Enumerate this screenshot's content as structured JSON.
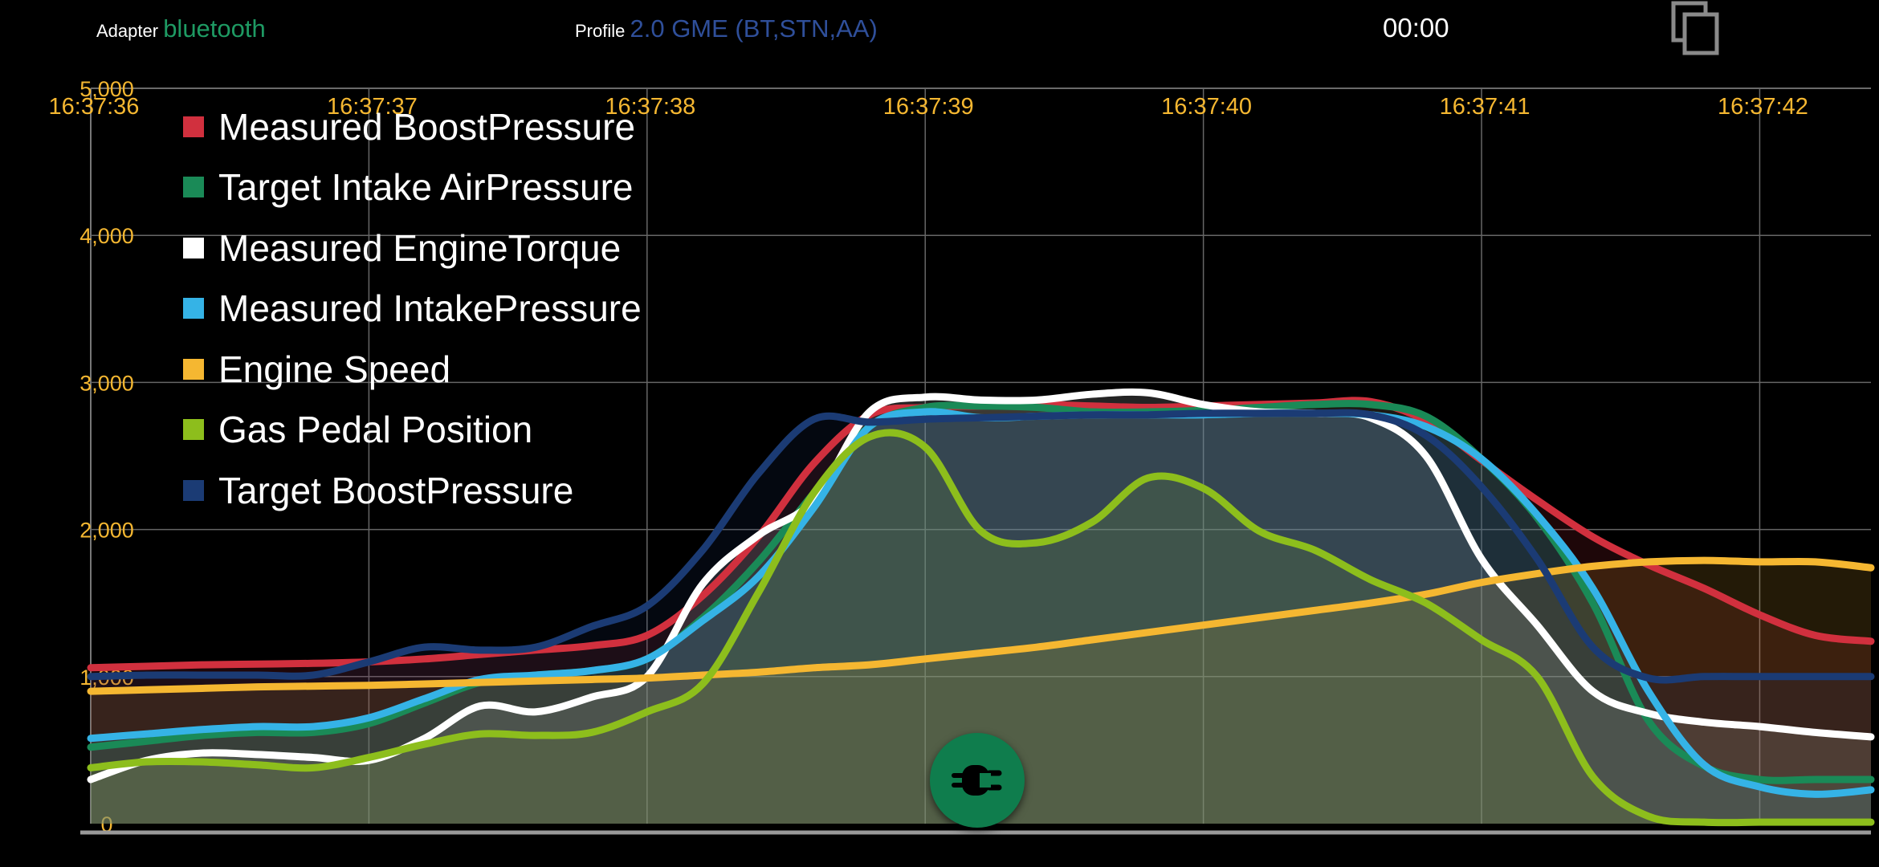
{
  "header": {
    "adapter_label": "Adapter",
    "adapter_value": "bluetooth",
    "profile_label": "Profile",
    "profile_value": "2.0 GME (BT,STN,AA)",
    "timer": "00:00"
  },
  "icons": {
    "copy": "copy-icon",
    "fab": "connector-plug-icon"
  },
  "colors": {
    "background": "#000000",
    "tick_label": "#f5b731",
    "adapter": "#1e9a63",
    "profile": "#2f4f9a",
    "fab": "#0f7d4d"
  },
  "chart_data": {
    "type": "area",
    "x_axis": {
      "type": "time",
      "ticks": [
        "16:37:36",
        "16:37:37",
        "16:37:38",
        "16:37:39",
        "16:37:40",
        "16:37:41",
        "16:37:42"
      ],
      "range": [
        0,
        6.4
      ]
    },
    "y_axis": {
      "range": [
        0,
        5000
      ],
      "ticks": [
        "0",
        "1,000",
        "2,000",
        "3,000",
        "4,000",
        "5,000"
      ]
    },
    "grid": true,
    "legend_position": "top-left",
    "x": [
      0,
      0.2,
      0.4,
      0.6,
      0.8,
      1.0,
      1.2,
      1.4,
      1.6,
      1.8,
      2.0,
      2.2,
      2.4,
      2.6,
      2.8,
      3.0,
      3.2,
      3.4,
      3.6,
      3.8,
      4.0,
      4.2,
      4.4,
      4.6,
      4.8,
      5.0,
      5.2,
      5.4,
      5.6,
      5.8,
      6.0,
      6.2,
      6.4
    ],
    "series": [
      {
        "name": "Measured BoostPressure",
        "color": "#d1303e",
        "values": [
          1060,
          1070,
          1080,
          1085,
          1090,
          1100,
          1120,
          1150,
          1180,
          1210,
          1280,
          1550,
          1950,
          2450,
          2780,
          2830,
          2840,
          2850,
          2840,
          2830,
          2840,
          2850,
          2860,
          2870,
          2740,
          2470,
          2200,
          1950,
          1760,
          1600,
          1420,
          1280,
          1240
        ]
      },
      {
        "name": "Target Intake AirPressure",
        "color": "#1a8a57",
        "values": [
          520,
          560,
          600,
          620,
          620,
          680,
          820,
          960,
          1010,
          1040,
          1120,
          1400,
          1780,
          2250,
          2700,
          2830,
          2840,
          2830,
          2800,
          2800,
          2810,
          2830,
          2850,
          2850,
          2770,
          2480,
          2080,
          1500,
          700,
          390,
          300,
          300,
          300
        ]
      },
      {
        "name": "Measured EngineTorque",
        "color": "#ffffff",
        "values": [
          300,
          430,
          480,
          470,
          450,
          430,
          580,
          800,
          760,
          860,
          1000,
          1630,
          1960,
          2200,
          2800,
          2900,
          2880,
          2880,
          2920,
          2930,
          2850,
          2800,
          2790,
          2760,
          2500,
          1800,
          1350,
          900,
          750,
          690,
          660,
          620,
          590
        ]
      },
      {
        "name": "Measured IntakePressure",
        "color": "#35b3e6",
        "values": [
          580,
          610,
          640,
          660,
          660,
          720,
          850,
          980,
          1010,
          1040,
          1120,
          1380,
          1680,
          2150,
          2700,
          2800,
          2760,
          2770,
          2780,
          2780,
          2780,
          2790,
          2790,
          2780,
          2700,
          2480,
          2100,
          1600,
          900,
          400,
          250,
          200,
          230
        ]
      },
      {
        "name": "Engine Speed",
        "color": "#f5b731",
        "values": [
          900,
          910,
          920,
          930,
          935,
          940,
          950,
          960,
          970,
          980,
          990,
          1010,
          1030,
          1060,
          1080,
          1120,
          1160,
          1200,
          1250,
          1300,
          1350,
          1400,
          1450,
          1500,
          1560,
          1640,
          1700,
          1750,
          1780,
          1790,
          1780,
          1780,
          1740
        ]
      },
      {
        "name": "Gas Pedal Position",
        "color": "#8dbe1c",
        "values": [
          380,
          420,
          420,
          400,
          380,
          450,
          540,
          610,
          600,
          620,
          760,
          950,
          1570,
          2250,
          2630,
          2560,
          1990,
          1910,
          2050,
          2350,
          2280,
          1990,
          1860,
          1660,
          1500,
          1250,
          1000,
          320,
          50,
          10,
          10,
          10,
          10
        ]
      },
      {
        "name": "Target BoostPressure",
        "color": "#1b3b74",
        "values": [
          1000,
          1010,
          1010,
          1010,
          1010,
          1100,
          1200,
          1180,
          1200,
          1340,
          1480,
          1860,
          2380,
          2750,
          2730,
          2750,
          2760,
          2770,
          2780,
          2780,
          2790,
          2790,
          2790,
          2780,
          2640,
          2290,
          1800,
          1200,
          990,
          1000,
          1000,
          1000,
          1000
        ]
      }
    ]
  }
}
